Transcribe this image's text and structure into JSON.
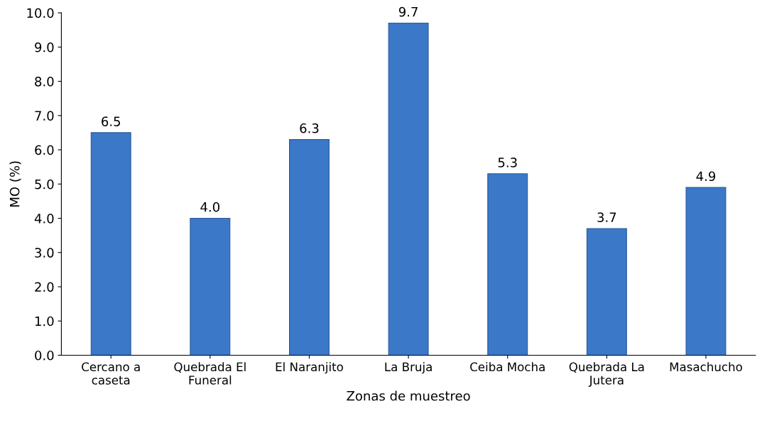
{
  "chart_data": {
    "type": "bar",
    "xlabel": "Zonas de muestreo",
    "ylabel": "MO (%)",
    "categories": [
      "Cercano a\ncaseta",
      "Quebrada El\nFuneral",
      "El Naranjito",
      "La Bruja",
      "Ceiba Mocha",
      "Quebrada La\nJutera",
      "Masachucho"
    ],
    "values": [
      6.5,
      4.0,
      6.3,
      9.7,
      5.3,
      3.7,
      4.9
    ],
    "color": "#3b78c8",
    "ylim": [
      0,
      10
    ],
    "yticks": [
      {
        "value": 0,
        "label": "0.0"
      },
      {
        "value": 1,
        "label": "1.0"
      },
      {
        "value": 2,
        "label": "2.0"
      },
      {
        "value": 3,
        "label": "3.0"
      },
      {
        "value": 4,
        "label": "4.0"
      },
      {
        "value": 5,
        "label": "5.0"
      },
      {
        "value": 6,
        "label": "6.0"
      },
      {
        "value": 7,
        "label": "7.0"
      },
      {
        "value": 8,
        "label": "8.0"
      },
      {
        "value": 9,
        "label": "9.0"
      },
      {
        "value": 10,
        "label": "10.0"
      }
    ],
    "value_labels": [
      "6.5",
      "4.0",
      "6.3",
      "9.7",
      "5.3",
      "3.7",
      "4.9"
    ],
    "grid": false,
    "legend": false
  }
}
